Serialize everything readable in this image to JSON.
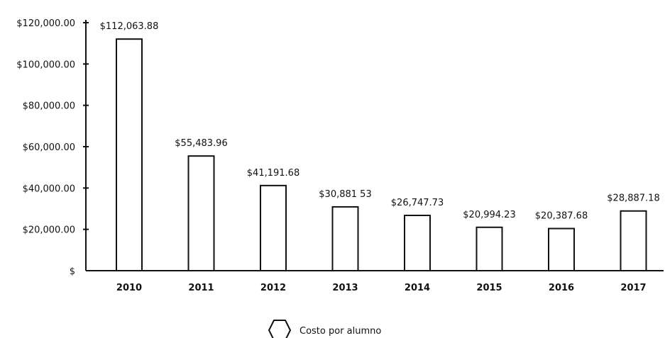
{
  "chart_data": {
    "type": "bar",
    "categories": [
      "2010",
      "2011",
      "2012",
      "2013",
      "2014",
      "2015",
      "2016",
      "2017"
    ],
    "series": [
      {
        "name": "Costo por alumno",
        "values": [
          112063.88,
          55483.96,
          41191.68,
          30881.53,
          26747.73,
          20994.23,
          20387.68,
          28887.18
        ]
      }
    ],
    "data_labels": [
      "$112,063.88",
      "$55,483.96",
      "$41,191.68",
      "$30,881 53",
      "$26,747.73",
      "$20,994.23",
      "$20,387.68",
      "$28,887.18"
    ],
    "y_tick_values": [
      0,
      20000,
      40000,
      60000,
      80000,
      100000,
      120000
    ],
    "y_tick_labels": [
      "$",
      "$20,000.00",
      "$40,000.00",
      "$60,000.00",
      "$80,000.00",
      "$100,000.00",
      "$120,000.00"
    ],
    "ylim": [
      0,
      120000
    ],
    "title": "",
    "xlabel": "",
    "ylabel": "",
    "grid": false,
    "legend_position": "bottom-center",
    "bar_fill": "#ffffff",
    "bar_stroke": "#111111"
  }
}
